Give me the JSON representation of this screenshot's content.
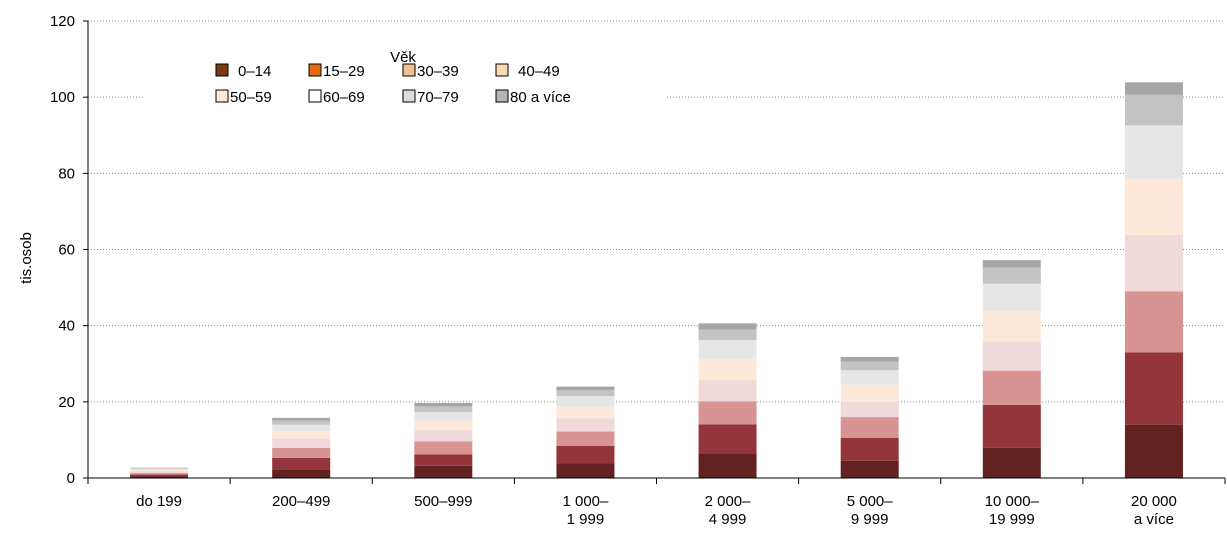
{
  "chart_data": {
    "type": "bar",
    "stacked": true,
    "ylabel": "tis.osob",
    "ylim": [
      0,
      120
    ],
    "yticks": [
      0,
      20,
      40,
      60,
      80,
      100,
      120
    ],
    "grid": "horizontal dotted",
    "legend_title": "Věk",
    "legend_position": "top-left",
    "categories": [
      [
        "do 199"
      ],
      [
        "200–499"
      ],
      [
        "500–999"
      ],
      [
        "1 000–",
        "1 999"
      ],
      [
        "2 000–",
        "4 999"
      ],
      [
        "5 000–",
        "9 999"
      ],
      [
        "10 000–",
        "19 999"
      ],
      [
        "20 000",
        "a více"
      ]
    ],
    "series": [
      {
        "name": "0–14",
        "legend_color": "#7b3a12",
        "bar_color": "#62221f",
        "values": [
          0.4,
          2.3,
          3.2,
          3.8,
          6.3,
          4.5,
          7.9,
          14.0
        ]
      },
      {
        "name": "15–29",
        "legend_color": "#e26a10",
        "bar_color": "#94353a",
        "values": [
          0.5,
          3.0,
          3.0,
          4.6,
          7.8,
          6.0,
          11.3,
          19.0
        ]
      },
      {
        "name": "30–39",
        "legend_color": "#f4c090",
        "bar_color": "#d89393",
        "values": [
          0.4,
          2.6,
          3.4,
          3.8,
          6.0,
          5.5,
          9.0,
          16.0
        ]
      },
      {
        "name": "40–49",
        "legend_color": "#fbd9b3",
        "bar_color": "#f0d9da",
        "values": [
          0.4,
          2.4,
          2.9,
          3.5,
          5.7,
          4.0,
          7.7,
          14.8
        ]
      },
      {
        "name": "50–59",
        "legend_color": "#fde9d8",
        "bar_color": "#fde8da",
        "values": [
          0.4,
          2.0,
          2.6,
          3.0,
          5.5,
          4.5,
          8.1,
          14.8
        ]
      },
      {
        "name": "60–69",
        "legend_color": "#ffffff",
        "bar_color": "#e6e6e6",
        "values": [
          0.3,
          1.7,
          2.2,
          2.8,
          4.9,
          3.8,
          7.0,
          14.0
        ]
      },
      {
        "name": "70–79",
        "legend_color": "#dcdcdc",
        "bar_color": "#c3c3c3",
        "values": [
          0.2,
          1.1,
          1.5,
          1.6,
          2.8,
          2.3,
          4.3,
          8.0
        ]
      },
      {
        "name": "80 a více",
        "legend_color": "#b4b4b4",
        "bar_color": "#a6a6a6",
        "values": [
          0.1,
          0.7,
          0.9,
          0.9,
          1.6,
          1.2,
          1.9,
          3.3
        ]
      }
    ]
  }
}
